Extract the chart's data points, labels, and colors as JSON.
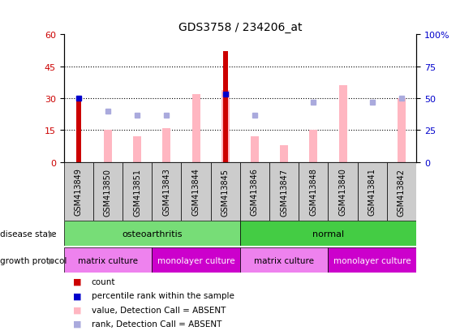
{
  "title": "GDS3758 / 234206_at",
  "samples": [
    "GSM413849",
    "GSM413850",
    "GSM413851",
    "GSM413843",
    "GSM413844",
    "GSM413845",
    "GSM413846",
    "GSM413847",
    "GSM413848",
    "GSM413840",
    "GSM413841",
    "GSM413842"
  ],
  "count_values": [
    30,
    0,
    0,
    0,
    0,
    52,
    0,
    0,
    0,
    0,
    0,
    0
  ],
  "percentile_rank": [
    30,
    null,
    null,
    null,
    null,
    32,
    null,
    null,
    null,
    null,
    null,
    null
  ],
  "absent_value": [
    null,
    15,
    12,
    16,
    32,
    34,
    12,
    8,
    15,
    36,
    null,
    30
  ],
  "absent_rank": [
    null,
    24,
    22,
    22,
    null,
    null,
    22,
    null,
    28,
    null,
    28,
    30
  ],
  "ylim_left": [
    0,
    60
  ],
  "ylim_right": [
    0,
    100
  ],
  "yticks_left": [
    0,
    15,
    30,
    45,
    60
  ],
  "yticks_right": [
    0,
    25,
    50,
    75,
    100
  ],
  "disease_state": [
    {
      "label": "osteoarthritis",
      "start": 0,
      "end": 6,
      "color": "#77DD77"
    },
    {
      "label": "normal",
      "start": 6,
      "end": 12,
      "color": "#44CC44"
    }
  ],
  "growth_protocol": [
    {
      "label": "matrix culture",
      "start": 0,
      "end": 3,
      "color": "#EE82EE"
    },
    {
      "label": "monolayer culture",
      "start": 3,
      "end": 6,
      "color": "#CC00CC"
    },
    {
      "label": "matrix culture",
      "start": 6,
      "end": 9,
      "color": "#EE82EE"
    },
    {
      "label": "monolayer culture",
      "start": 9,
      "end": 12,
      "color": "#CC00CC"
    }
  ],
  "count_color": "#CC0000",
  "percentile_color": "#0000CC",
  "absent_value_color": "#FFB6C1",
  "absent_rank_color": "#AAAADD",
  "bg_color": "#FFFFFF",
  "tick_label_color_left": "#CC0000",
  "tick_label_color_right": "#0000CC",
  "sample_box_color": "#CCCCCC",
  "legend_items": [
    {
      "color": "#CC0000",
      "label": "count"
    },
    {
      "color": "#0000CC",
      "label": "percentile rank within the sample"
    },
    {
      "color": "#FFB6C1",
      "label": "value, Detection Call = ABSENT"
    },
    {
      "color": "#AAAADD",
      "label": "rank, Detection Call = ABSENT"
    }
  ]
}
